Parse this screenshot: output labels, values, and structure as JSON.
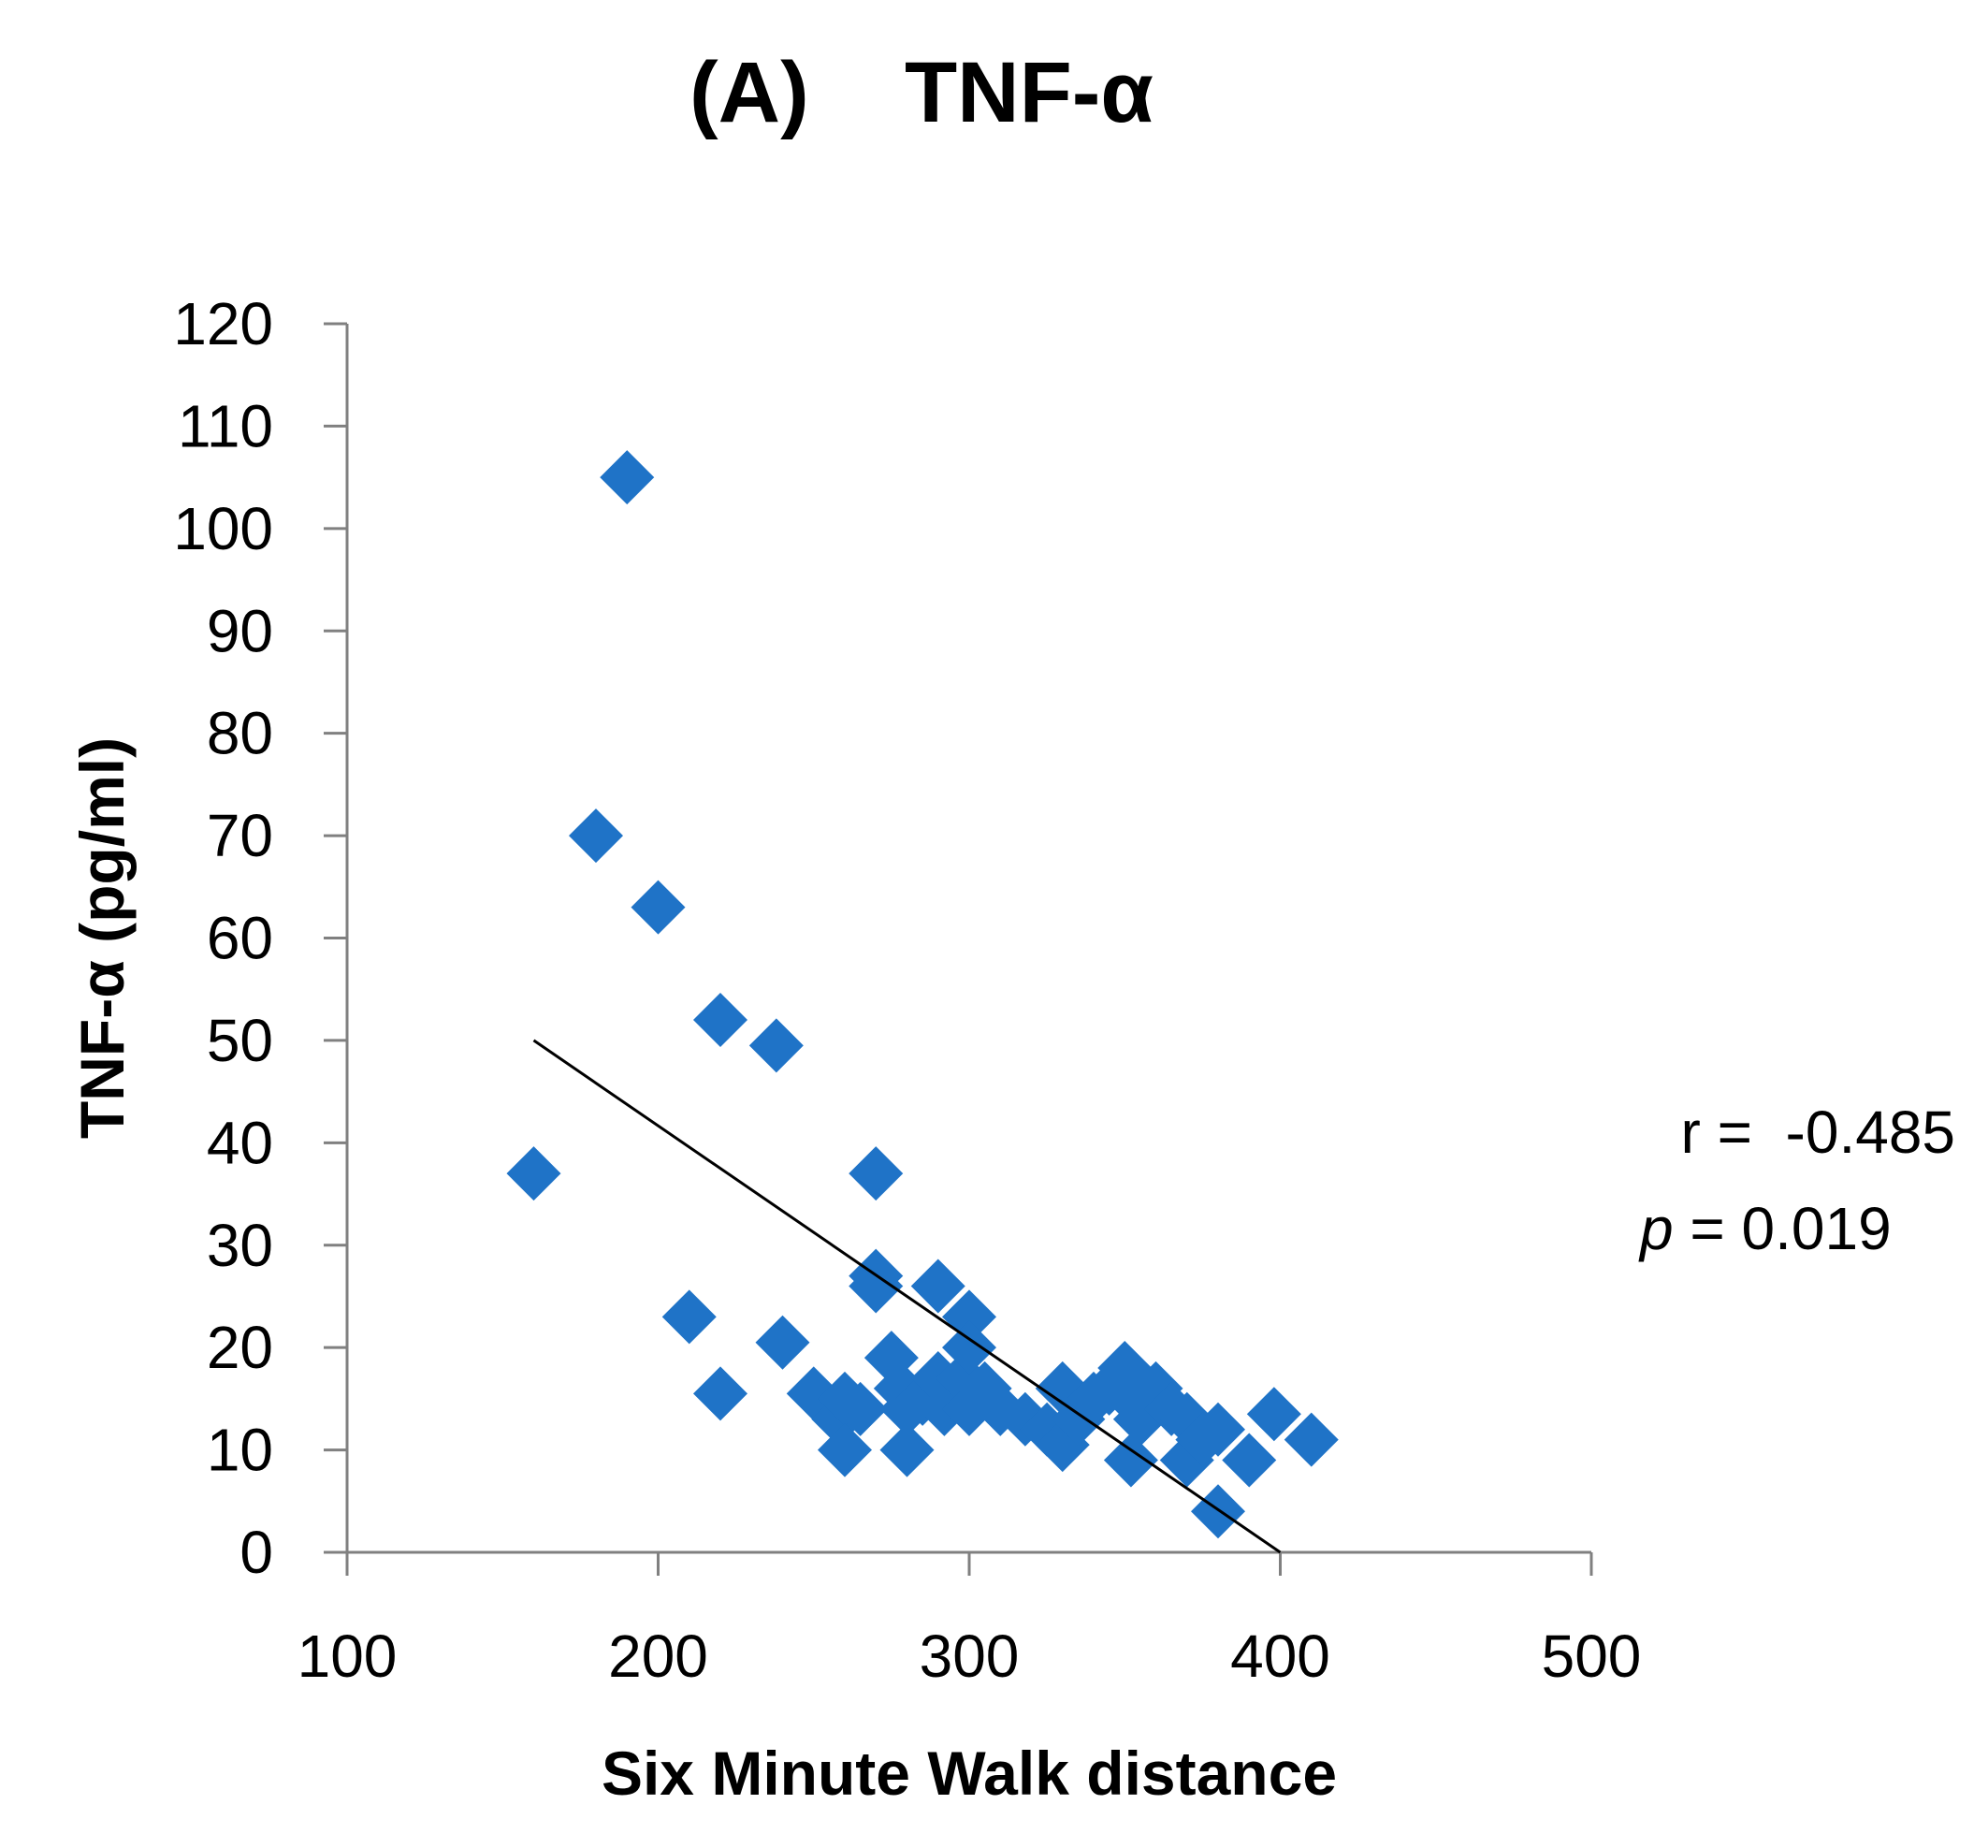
{
  "title": "(A)    TNF-α",
  "chart_data": {
    "type": "scatter",
    "xlabel": "Six Minute Walk distance",
    "ylabel": "TNF-α (pg/ml)",
    "xlim": [
      100,
      500
    ],
    "ylim": [
      0,
      120
    ],
    "x_ticks": [
      100,
      200,
      300,
      400,
      500
    ],
    "y_ticks": [
      0,
      10,
      20,
      30,
      40,
      50,
      60,
      70,
      80,
      90,
      100,
      110,
      120
    ],
    "marker_color": "#1F73C7",
    "points": [
      [
        160,
        37
      ],
      [
        180,
        70
      ],
      [
        190,
        105
      ],
      [
        200,
        63
      ],
      [
        210,
        23
      ],
      [
        220,
        52
      ],
      [
        220,
        15.5
      ],
      [
        238,
        49.5
      ],
      [
        240,
        20.5
      ],
      [
        250,
        15.5
      ],
      [
        258,
        13
      ],
      [
        260,
        15
      ],
      [
        260,
        10
      ],
      [
        265,
        14
      ],
      [
        270,
        37
      ],
      [
        270,
        27
      ],
      [
        270,
        26
      ],
      [
        275,
        19
      ],
      [
        278,
        16
      ],
      [
        280,
        10
      ],
      [
        280,
        14
      ],
      [
        285,
        15
      ],
      [
        290,
        26
      ],
      [
        290,
        17
      ],
      [
        292,
        14
      ],
      [
        298,
        17
      ],
      [
        300,
        23
      ],
      [
        300,
        20
      ],
      [
        300,
        14
      ],
      [
        305,
        16
      ],
      [
        310,
        14
      ],
      [
        318,
        13
      ],
      [
        325,
        12
      ],
      [
        330,
        16
      ],
      [
        330,
        10.5
      ],
      [
        335,
        13
      ],
      [
        340,
        15
      ],
      [
        345,
        16
      ],
      [
        350,
        18
      ],
      [
        352,
        15
      ],
      [
        355,
        13
      ],
      [
        352,
        9
      ],
      [
        360,
        16
      ],
      [
        365,
        14
      ],
      [
        370,
        13
      ],
      [
        370,
        9
      ],
      [
        375,
        11
      ],
      [
        380,
        12
      ],
      [
        380,
        4
      ],
      [
        390,
        9
      ],
      [
        398,
        13.5
      ],
      [
        410,
        11
      ]
    ],
    "trendline": {
      "x": [
        160,
        400
      ],
      "y": [
        50,
        0
      ]
    },
    "annotations": {
      "r": "r =  -0.485",
      "p_label": "p",
      "p_value": " = 0.019"
    }
  }
}
